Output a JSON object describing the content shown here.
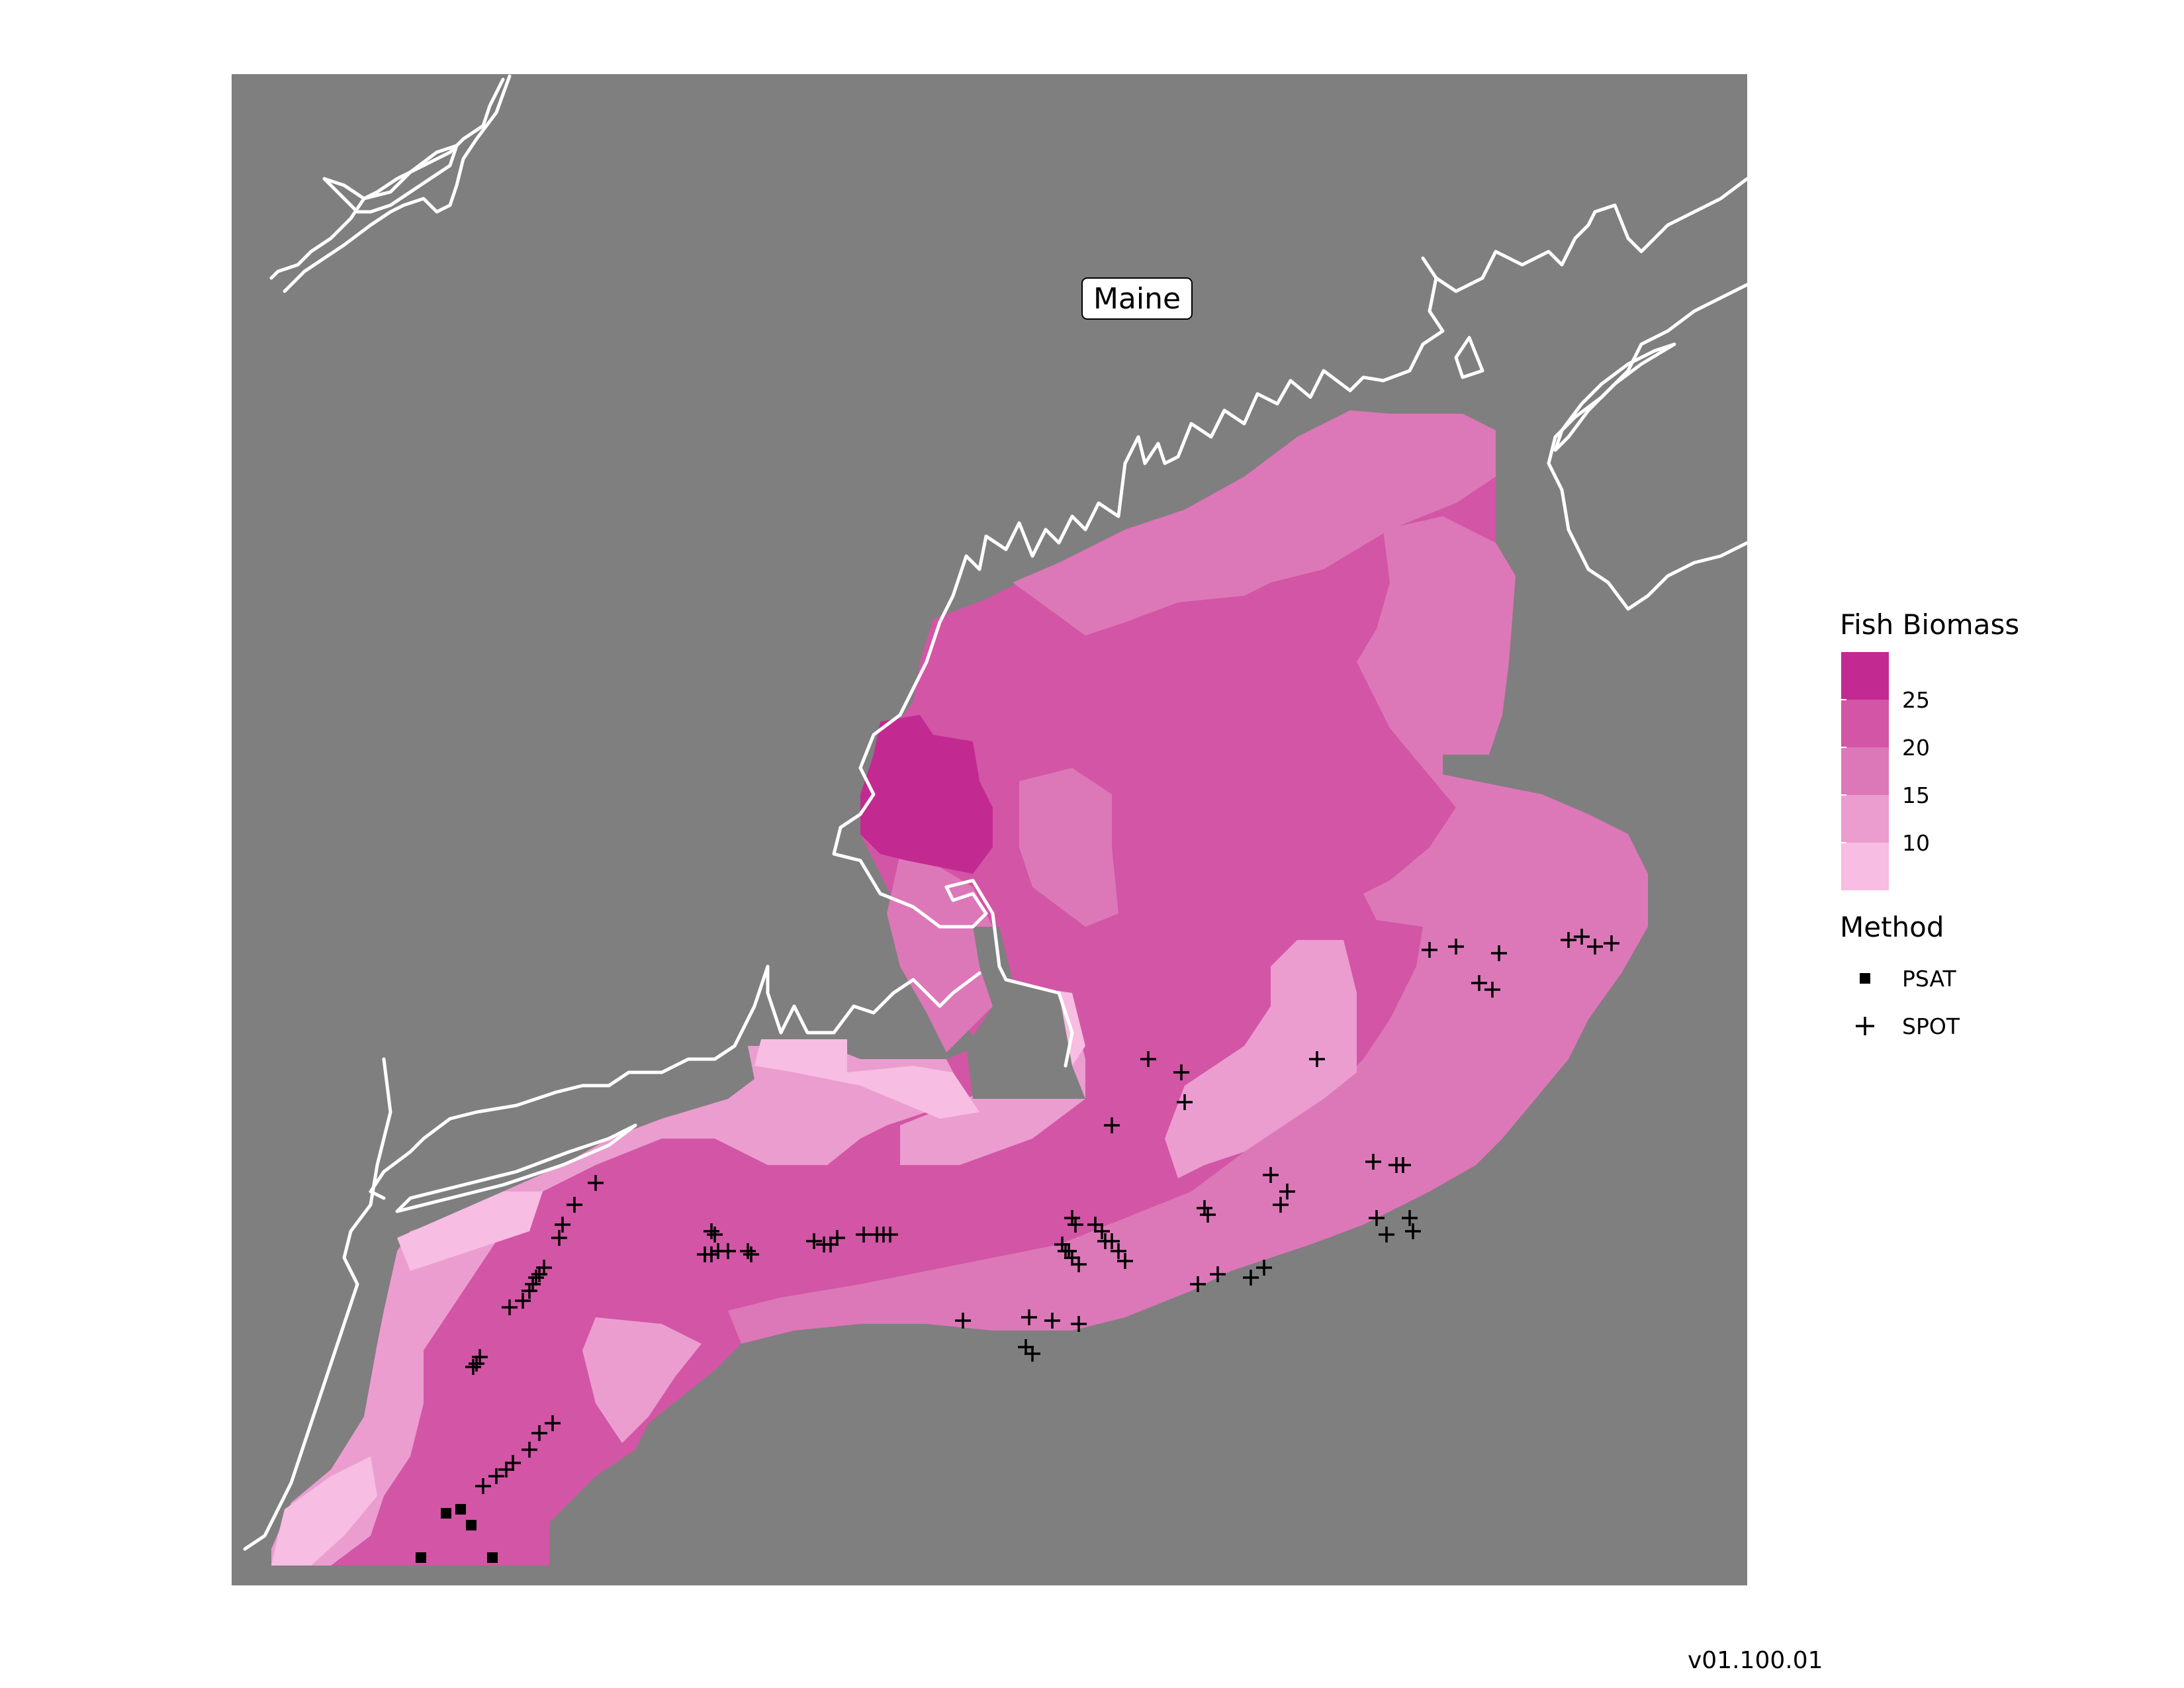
{
  "map": {
    "place_label": "Maine",
    "background_color": "#7f7f7f",
    "coastline_color": "#ffffff"
  },
  "legend": {
    "biomass_title": "Fish Biomass",
    "biomass_bins": [
      {
        "color": "#c22a91",
        "label": ""
      },
      {
        "color": "#d355a5",
        "label": "25"
      },
      {
        "color": "#dc78b8",
        "label": "20"
      },
      {
        "color": "#eb9dd0",
        "label": "15"
      },
      {
        "color": "#f7bde2",
        "label": "10"
      }
    ],
    "method_title": "Method",
    "methods": [
      {
        "name": "PSAT",
        "symbol": "filled-square"
      },
      {
        "name": "SPOT",
        "symbol": "plus"
      }
    ]
  },
  "caption": "v01.100.01"
}
